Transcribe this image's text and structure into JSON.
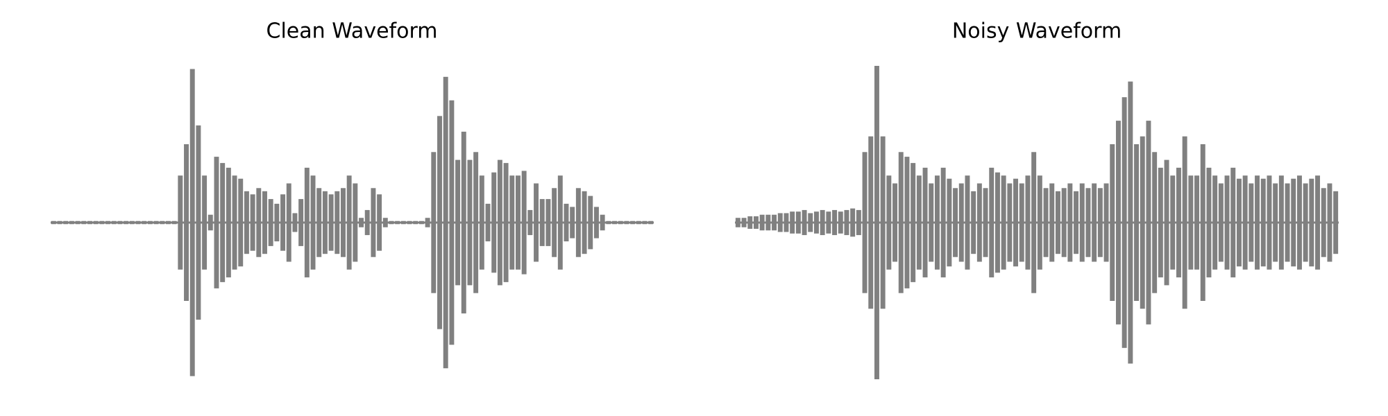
{
  "chart_data": [
    {
      "type": "waveform",
      "title": "Clean Waveform",
      "color": "#808080",
      "ylim": [
        -1,
        1
      ],
      "values": [
        0.01,
        0.01,
        0.01,
        0.01,
        0.01,
        0.01,
        0.01,
        0.01,
        0.01,
        0.01,
        0.01,
        0.01,
        0.01,
        0.01,
        0.01,
        0.01,
        0.01,
        0.01,
        0.01,
        0.01,
        0.01,
        0.3,
        0.5,
        0.98,
        0.62,
        0.3,
        0.05,
        0.42,
        0.38,
        0.35,
        0.3,
        0.28,
        0.2,
        0.18,
        0.22,
        0.2,
        0.15,
        0.12,
        0.18,
        0.25,
        0.06,
        0.15,
        0.35,
        0.3,
        0.22,
        0.2,
        0.18,
        0.2,
        0.22,
        0.3,
        0.25,
        0.03,
        0.08,
        0.22,
        0.18,
        0.03,
        0.01,
        0.01,
        0.01,
        0.01,
        0.01,
        0.01,
        0.03,
        0.45,
        0.68,
        0.93,
        0.78,
        0.4,
        0.58,
        0.4,
        0.45,
        0.3,
        0.12,
        0.32,
        0.4,
        0.38,
        0.3,
        0.3,
        0.33,
        0.08,
        0.25,
        0.15,
        0.15,
        0.22,
        0.3,
        0.12,
        0.1,
        0.22,
        0.2,
        0.17,
        0.1,
        0.05,
        0.01,
        0.01,
        0.01,
        0.01,
        0.01,
        0.01,
        0.01,
        0.01
      ]
    },
    {
      "type": "waveform",
      "title": "Noisy Waveform",
      "color": "#808080",
      "ylim": [
        -1,
        1
      ],
      "values": [
        0.03,
        0.03,
        0.04,
        0.04,
        0.05,
        0.05,
        0.05,
        0.06,
        0.06,
        0.07,
        0.07,
        0.08,
        0.06,
        0.07,
        0.08,
        0.07,
        0.08,
        0.07,
        0.08,
        0.09,
        0.08,
        0.45,
        0.55,
        1.0,
        0.55,
        0.3,
        0.25,
        0.45,
        0.42,
        0.38,
        0.3,
        0.35,
        0.25,
        0.3,
        0.35,
        0.28,
        0.22,
        0.25,
        0.3,
        0.2,
        0.25,
        0.22,
        0.35,
        0.32,
        0.3,
        0.25,
        0.28,
        0.25,
        0.3,
        0.45,
        0.3,
        0.22,
        0.25,
        0.2,
        0.22,
        0.25,
        0.2,
        0.25,
        0.22,
        0.25,
        0.22,
        0.25,
        0.5,
        0.65,
        0.8,
        0.9,
        0.5,
        0.55,
        0.65,
        0.45,
        0.35,
        0.4,
        0.3,
        0.35,
        0.55,
        0.3,
        0.3,
        0.5,
        0.35,
        0.3,
        0.25,
        0.3,
        0.35,
        0.28,
        0.3,
        0.25,
        0.3,
        0.28,
        0.3,
        0.25,
        0.3,
        0.25,
        0.28,
        0.3,
        0.25,
        0.28,
        0.3,
        0.22,
        0.25,
        0.2
      ]
    }
  ]
}
